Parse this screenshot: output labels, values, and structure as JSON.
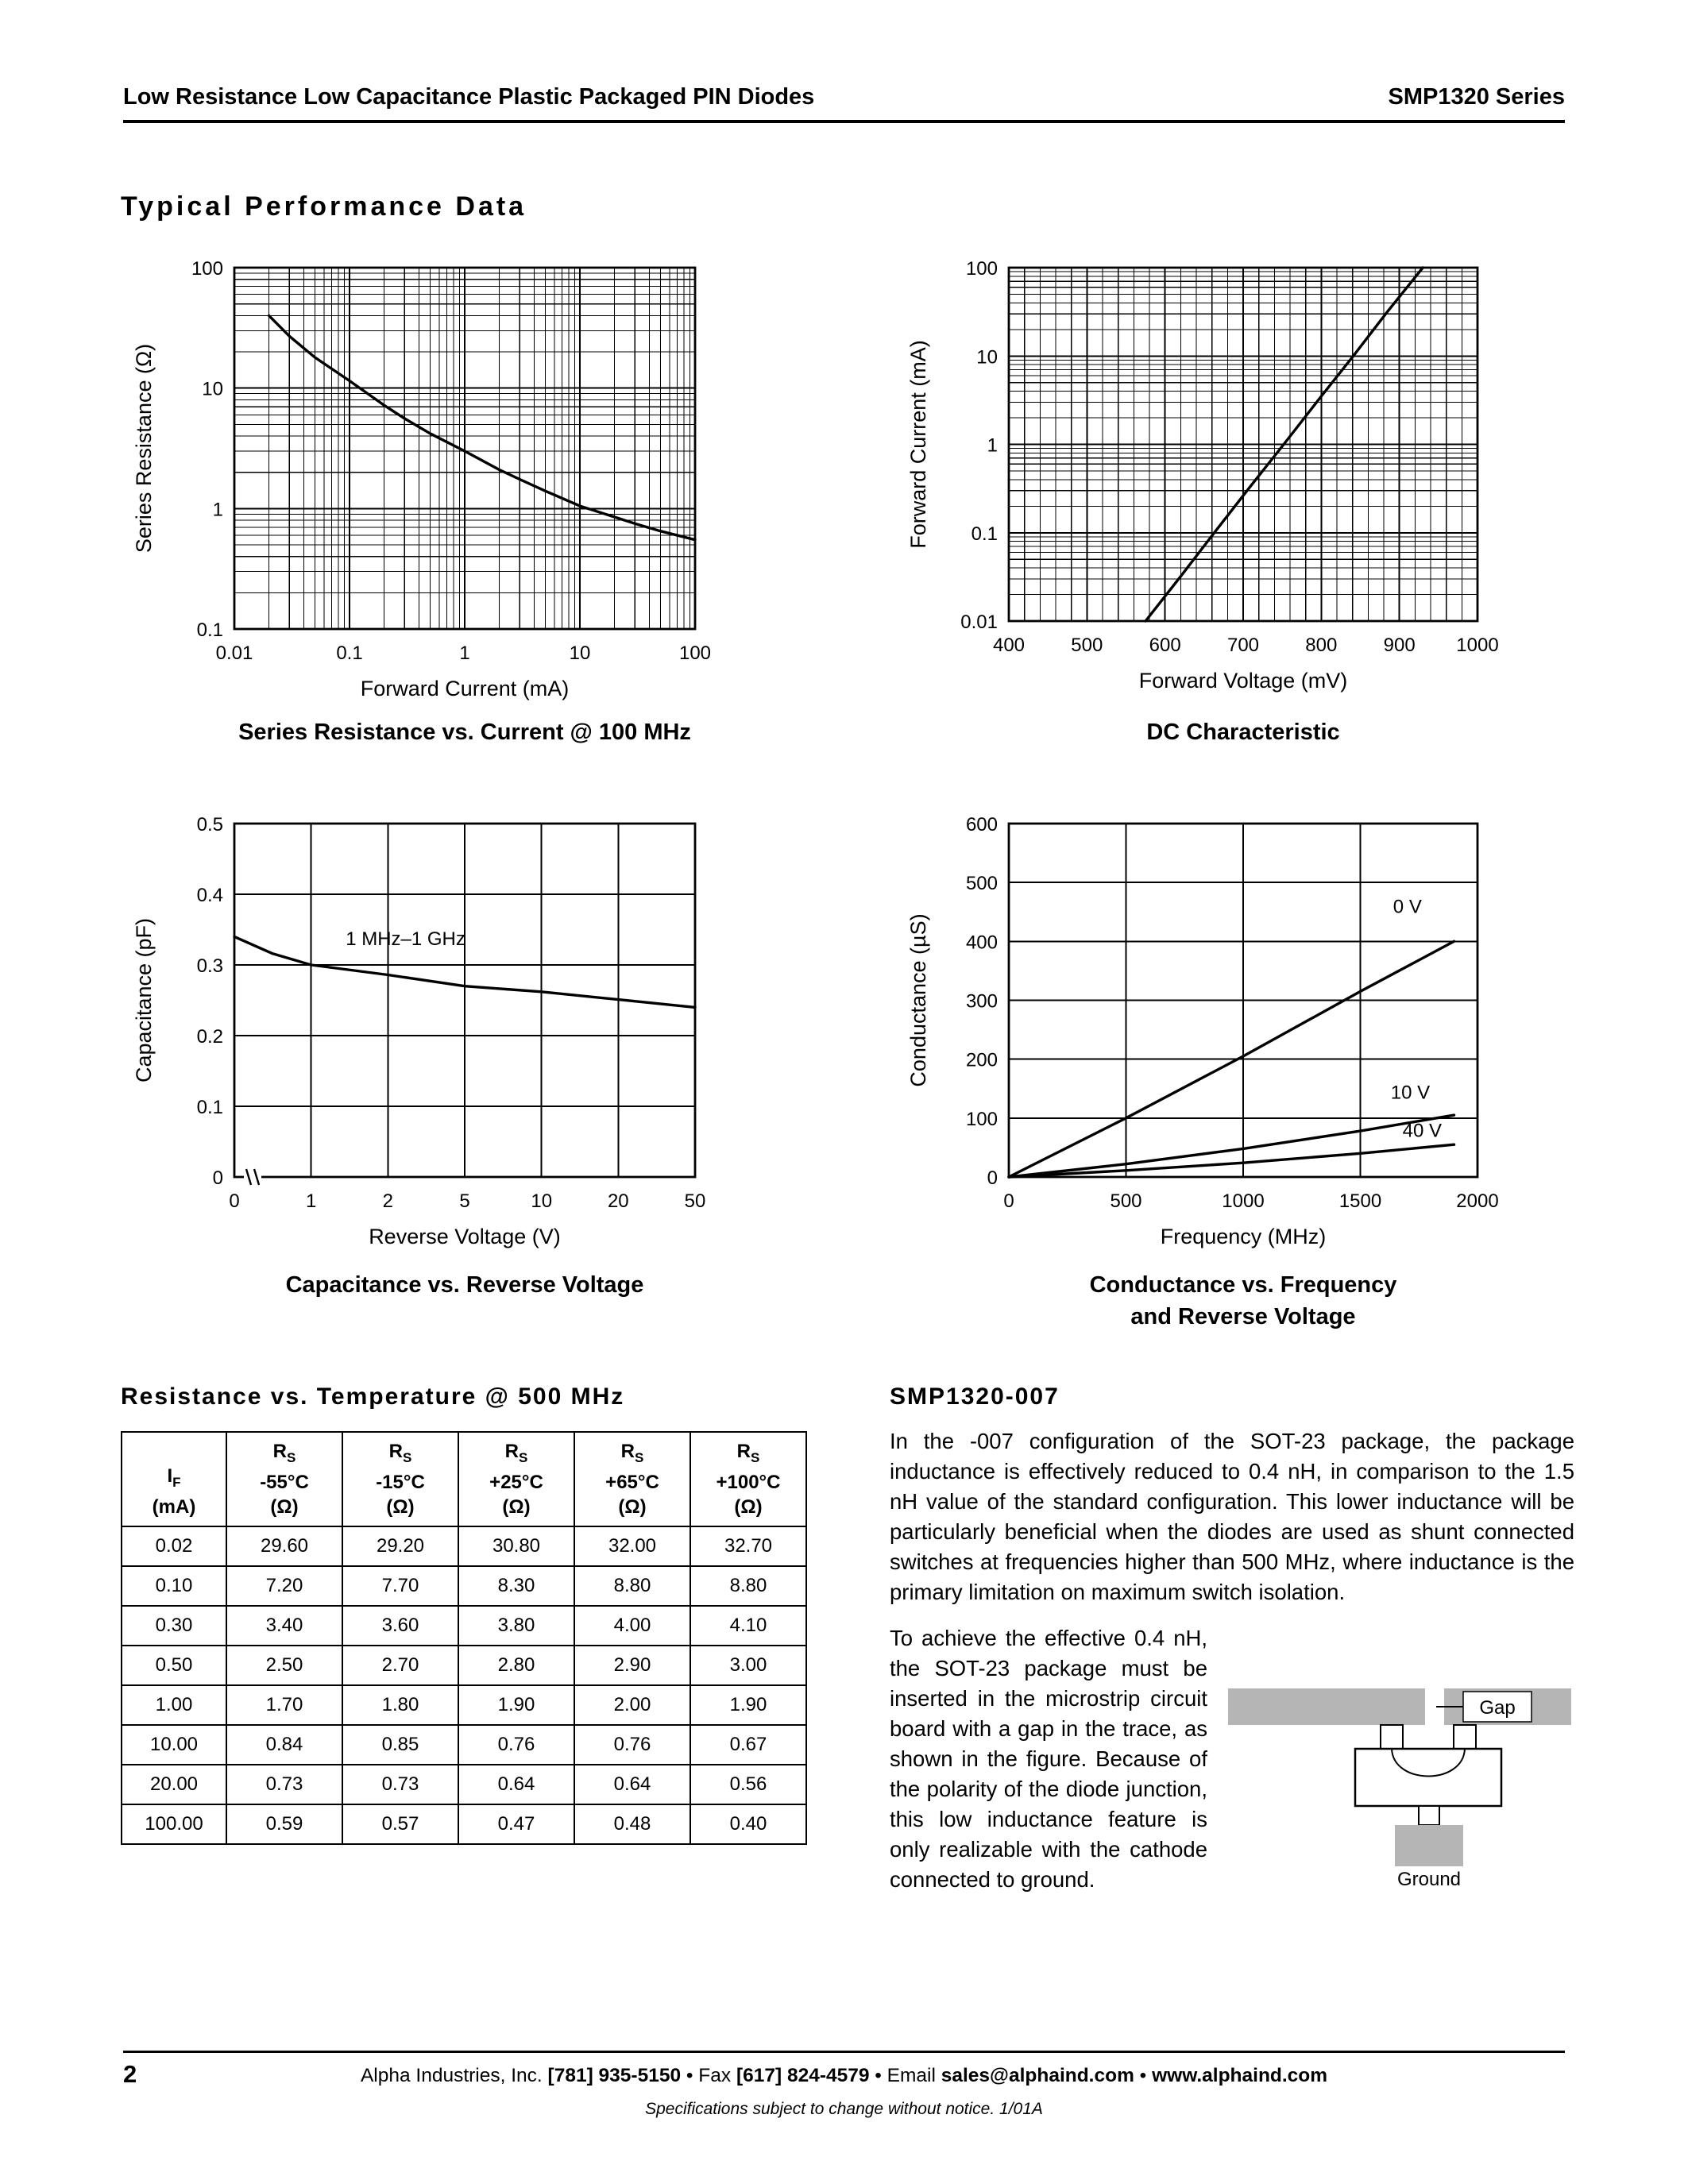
{
  "page": {
    "header_left": "Low Resistance Low Capacitance Plastic Packaged PIN Diodes",
    "header_right": "SMP1320 Series",
    "section_title": "Typical Performance Data",
    "footer": {
      "page_number": "2",
      "segments": [
        {
          "text": "Alpha Industries, Inc. ",
          "bold": false
        },
        {
          "text": "[781] 935-5150",
          "bold": true
        },
        {
          "text": " • Fax ",
          "bold": false
        },
        {
          "text": "[617] 824-4579",
          "bold": true
        },
        {
          "text": " • Email ",
          "bold": false
        },
        {
          "text": "sales@alphaind.com",
          "bold": true
        },
        {
          "text": " • ",
          "bold": false
        },
        {
          "text": "www.alphaind.com",
          "bold": true
        }
      ],
      "note": "Specifications subject to change without notice.  1/01A"
    }
  },
  "chart_data": [
    {
      "id": "rs-vs-current",
      "type": "line",
      "title_lines": [
        "Series Resistance vs. Current @ 100 MHz"
      ],
      "xlabel": "Forward Current (mA)",
      "ylabel": "Series Resistance (Ω)",
      "x": {
        "type": "log",
        "min": 0.01,
        "max": 100,
        "ticks": [
          0.01,
          0.1,
          1,
          10,
          100
        ],
        "tick_labels": [
          "0.01",
          "0.1",
          "1",
          "10",
          "100"
        ]
      },
      "y": {
        "type": "log",
        "min": 0.1,
        "max": 100,
        "ticks": [
          0.1,
          1,
          10,
          100
        ],
        "tick_labels": [
          "0.1",
          "1",
          "10",
          "100"
        ]
      },
      "series": [
        {
          "name": "series-resistance",
          "points": [
            [
              0.02,
              40
            ],
            [
              0.03,
              27
            ],
            [
              0.05,
              18
            ],
            [
              0.1,
              11.5
            ],
            [
              0.2,
              7.2
            ],
            [
              0.3,
              5.6
            ],
            [
              0.5,
              4.2
            ],
            [
              1,
              3.0
            ],
            [
              2,
              2.1
            ],
            [
              3,
              1.75
            ],
            [
              5,
              1.4
            ],
            [
              10,
              1.05
            ],
            [
              20,
              0.85
            ],
            [
              30,
              0.75
            ],
            [
              50,
              0.65
            ],
            [
              100,
              0.55
            ]
          ]
        }
      ],
      "annotations": []
    },
    {
      "id": "dc-characteristic",
      "type": "line",
      "title_lines": [
        "DC Characteristic"
      ],
      "xlabel": "Forward Voltage (mV)",
      "ylabel": "Forward Current (mA)",
      "x": {
        "type": "linear",
        "min": 400,
        "max": 1000,
        "step": 100,
        "minor_step": 20,
        "ticks": [
          400,
          500,
          600,
          700,
          800,
          900,
          1000
        ],
        "tick_labels": [
          "400",
          "500",
          "600",
          "700",
          "800",
          "900",
          "1000"
        ]
      },
      "y": {
        "type": "log",
        "min": 0.01,
        "max": 100,
        "ticks": [
          0.01,
          0.1,
          1,
          10,
          100
        ],
        "tick_labels": [
          "0.01",
          "0.1",
          "1",
          "10",
          "100"
        ]
      },
      "series": [
        {
          "name": "forward-current",
          "points": [
            [
              575,
              0.01
            ],
            [
              620,
              0.032
            ],
            [
              663,
              0.1
            ],
            [
              710,
              0.34
            ],
            [
              752,
              1
            ],
            [
              800,
              3.5
            ],
            [
              841,
              10
            ],
            [
              885,
              32
            ],
            [
              930,
              100
            ]
          ]
        }
      ],
      "annotations": []
    },
    {
      "id": "cap-vs-voltage",
      "type": "line",
      "title_lines": [
        "Capacitance vs. Reverse Voltage"
      ],
      "xlabel": "Reverse Voltage (V)",
      "ylabel": "Capacitance (pF)",
      "x": {
        "type": "index",
        "axis_break": true,
        "ticks": [
          0,
          1,
          2,
          5,
          10,
          20,
          50
        ],
        "tick_labels": [
          "0",
          "1",
          "2",
          "5",
          "10",
          "20",
          "50"
        ]
      },
      "y": {
        "type": "linear",
        "min": 0,
        "max": 0.5,
        "step": 0.1,
        "ticks": [
          0,
          0.1,
          0.2,
          0.3,
          0.4,
          0.5
        ],
        "tick_labels": [
          "0",
          "0.1",
          "0.2",
          "0.3",
          "0.4",
          "0.5"
        ]
      },
      "series": [
        {
          "name": "capacitance",
          "points": [
            [
              0,
              0.34
            ],
            [
              0.5,
              0.316
            ],
            [
              1,
              0.3
            ],
            [
              2,
              0.286
            ],
            [
              5,
              0.27
            ],
            [
              10,
              0.262
            ],
            [
              20,
              0.251
            ],
            [
              50,
              0.24
            ]
          ]
        }
      ],
      "annotations": [
        {
          "text": "1 MHz–1 GHz",
          "x": 1.45,
          "y": 0.328,
          "anchor": "start"
        }
      ]
    },
    {
      "id": "conductance-vs-frequency",
      "type": "line",
      "title_lines": [
        "Conductance vs. Frequency",
        "and Reverse Voltage"
      ],
      "xlabel": "Frequency (MHz)",
      "ylabel": "Conductance (µS)",
      "x": {
        "type": "linear",
        "min": 0,
        "max": 2000,
        "step": 500,
        "ticks": [
          0,
          500,
          1000,
          1500,
          2000
        ],
        "tick_labels": [
          "0",
          "500",
          "1000",
          "1500",
          "2000"
        ]
      },
      "y": {
        "type": "linear",
        "min": 0,
        "max": 600,
        "step": 100,
        "ticks": [
          0,
          100,
          200,
          300,
          400,
          500,
          600
        ],
        "tick_labels": [
          "0",
          "100",
          "200",
          "300",
          "400",
          "500",
          "600"
        ]
      },
      "series": [
        {
          "name": "0 V",
          "points": [
            [
              0,
              0
            ],
            [
              500,
              100
            ],
            [
              1000,
              205
            ],
            [
              1500,
              315
            ],
            [
              1900,
              400
            ]
          ]
        },
        {
          "name": "10 V",
          "points": [
            [
              0,
              0
            ],
            [
              500,
              22
            ],
            [
              1000,
              48
            ],
            [
              1500,
              78
            ],
            [
              1900,
              105
            ]
          ]
        },
        {
          "name": "40 V",
          "points": [
            [
              0,
              0
            ],
            [
              500,
              11
            ],
            [
              1000,
              24
            ],
            [
              1500,
              40
            ],
            [
              1900,
              55
            ]
          ]
        }
      ],
      "annotations": [
        {
          "text": "0 V",
          "x": 1640,
          "y": 448,
          "anchor": "start"
        },
        {
          "text": "10 V",
          "x": 1630,
          "y": 133,
          "anchor": "start"
        },
        {
          "text": "40 V",
          "x": 1680,
          "y": 68,
          "anchor": "start"
        }
      ]
    }
  ],
  "table": {
    "heading": "Resistance vs. Temperature @ 500 MHz",
    "col_headers": [
      {
        "lines": [
          [],
          [
            {
              "t": "I"
            },
            {
              "t": "F",
              "sub": true
            }
          ],
          [
            {
              "t": "(mA)"
            }
          ]
        ]
      },
      {
        "lines": [
          [
            {
              "t": "R"
            },
            {
              "t": "S",
              "sub": true
            }
          ],
          [
            {
              "t": "-55°C"
            }
          ],
          [
            {
              "t": "(Ω)"
            }
          ]
        ]
      },
      {
        "lines": [
          [
            {
              "t": "R"
            },
            {
              "t": "S",
              "sub": true
            }
          ],
          [
            {
              "t": "-15°C"
            }
          ],
          [
            {
              "t": "(Ω)"
            }
          ]
        ]
      },
      {
        "lines": [
          [
            {
              "t": "R"
            },
            {
              "t": "S",
              "sub": true
            }
          ],
          [
            {
              "t": "+25°C"
            }
          ],
          [
            {
              "t": "(Ω)"
            }
          ]
        ]
      },
      {
        "lines": [
          [
            {
              "t": "R"
            },
            {
              "t": "S",
              "sub": true
            }
          ],
          [
            {
              "t": "+65°C"
            }
          ],
          [
            {
              "t": "(Ω)"
            }
          ]
        ]
      },
      {
        "lines": [
          [
            {
              "t": "R"
            },
            {
              "t": "S",
              "sub": true
            }
          ],
          [
            {
              "t": "+100°C"
            }
          ],
          [
            {
              "t": "(Ω)"
            }
          ]
        ]
      }
    ],
    "rows": [
      [
        "0.02",
        "29.60",
        "29.20",
        "30.80",
        "32.00",
        "32.70"
      ],
      [
        "0.10",
        "7.20",
        "7.70",
        "8.30",
        "8.80",
        "8.80"
      ],
      [
        "0.30",
        "3.40",
        "3.60",
        "3.80",
        "4.00",
        "4.10"
      ],
      [
        "0.50",
        "2.50",
        "2.70",
        "2.80",
        "2.90",
        "3.00"
      ],
      [
        "1.00",
        "1.70",
        "1.80",
        "1.90",
        "2.00",
        "1.90"
      ],
      [
        "10.00",
        "0.84",
        "0.85",
        "0.76",
        "0.76",
        "0.67"
      ],
      [
        "20.00",
        "0.73",
        "0.73",
        "0.64",
        "0.64",
        "0.56"
      ],
      [
        "100.00",
        "0.59",
        "0.57",
        "0.47",
        "0.48",
        "0.40"
      ]
    ]
  },
  "section_007": {
    "heading": "SMP1320-007",
    "para1": "In the -007 configuration of the SOT-23 package, the package inductance is effectively reduced to 0.4 nH, in comparison to the 1.5 nH value of the standard configuration. This lower inductance will be particularly beneficial when the diodes are used as shunt connected switches at frequencies higher than 500 MHz, where inductance is the primary limitation on maximum switch isolation.",
    "para2": "To achieve the effective 0.4 nH, the SOT-23 package must be inserted in the microstrip circuit board with a gap in the trace, as shown in the figure. Because of the polarity of the diode junction, this low inductance feature is only realizable with the cathode connected to ground.",
    "figure": {
      "gap_label": "Gap",
      "ground_label": "Ground"
    }
  }
}
